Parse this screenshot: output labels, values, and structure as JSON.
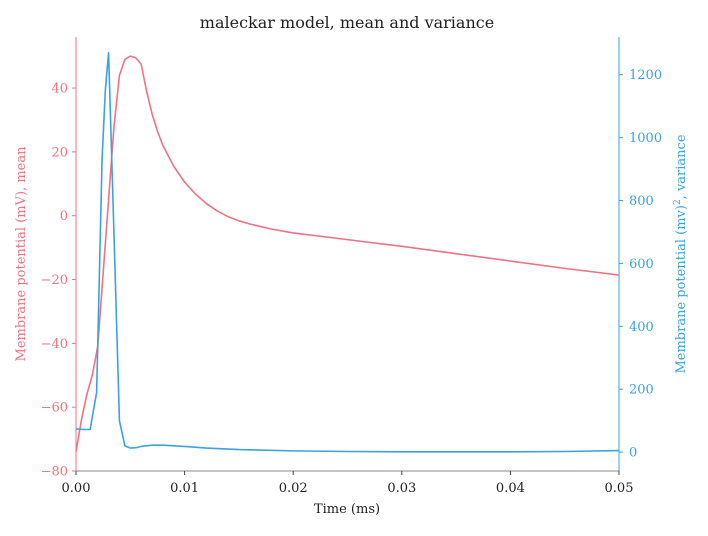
{
  "chart_data": {
    "type": "line",
    "title": "maleckar model, mean and variance",
    "xlabel": "Time (ms)",
    "ylabel_left": "Membrane potential (mV), mean",
    "ylabel_right_base": "Membrane potential (mv)",
    "ylabel_right_sup": "2",
    "ylabel_right_suffix": ", variance",
    "xlim": [
      0.0,
      0.05
    ],
    "ylim_left": [
      -80,
      56
    ],
    "ylim_right": [
      -60,
      1320
    ],
    "x_ticks": [
      "0.00",
      "0.01",
      "0.02",
      "0.03",
      "0.04",
      "0.05"
    ],
    "y_left_ticks": [
      "−80",
      "−60",
      "−40",
      "−20",
      "0",
      "20",
      "40"
    ],
    "y_right_ticks": [
      "0",
      "200",
      "400",
      "600",
      "800",
      "1000",
      "1200"
    ],
    "grid": false,
    "colors": {
      "mean": "#ee7384",
      "variance": "#3ba3dc",
      "axis": "#888888"
    },
    "series": [
      {
        "axis": "left",
        "x": [
          0.0,
          0.0005,
          0.001,
          0.0015,
          0.002,
          0.0025,
          0.003,
          0.0035,
          0.004,
          0.0045,
          0.005,
          0.0055,
          0.006,
          0.0065,
          0.007,
          0.0075,
          0.008,
          0.009,
          0.01,
          0.011,
          0.012,
          0.013,
          0.014,
          0.015,
          0.016,
          0.018,
          0.02,
          0.025,
          0.03,
          0.035,
          0.04,
          0.045,
          0.05
        ],
        "values": [
          -74,
          -64,
          -56,
          -50,
          -41,
          -18,
          5,
          28,
          44,
          49,
          50,
          49.5,
          47.5,
          39,
          32,
          26.5,
          22,
          15.5,
          10.5,
          6.8,
          3.8,
          1.5,
          -0.3,
          -1.6,
          -2.6,
          -4.2,
          -5.4,
          -7.5,
          -9.6,
          -11.9,
          -14.2,
          -16.5,
          -18.6
        ]
      },
      {
        "axis": "right",
        "x": [
          0.0,
          0.0007,
          0.0013,
          0.0019,
          0.0024,
          0.0027,
          0.003,
          0.0035,
          0.004,
          0.0045,
          0.005,
          0.0055,
          0.006,
          0.007,
          0.008,
          0.009,
          0.01,
          0.012,
          0.015,
          0.02,
          0.025,
          0.03,
          0.035,
          0.04,
          0.045,
          0.05
        ],
        "values": [
          74,
          72,
          72,
          190,
          930,
          1150,
          1270,
          690,
          100,
          20,
          13,
          14,
          18,
          22,
          22,
          20,
          18,
          13,
          8,
          4,
          2,
          1,
          1,
          1,
          2,
          5
        ]
      }
    ]
  }
}
